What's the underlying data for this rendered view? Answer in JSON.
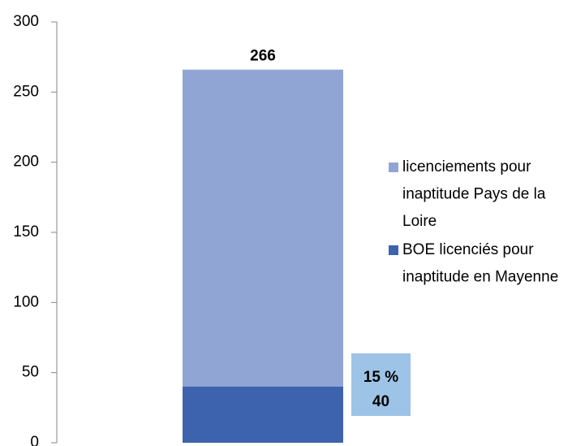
{
  "chart_data": {
    "type": "bar",
    "overlap": true,
    "categories": [
      null
    ],
    "series": [
      {
        "name": "licenciements pour inaptitude Pays de la Loire",
        "color": "#91a5d5",
        "values": [
          266
        ]
      },
      {
        "name": "BOE licenciés pour inaptitude en Mayenne",
        "color": "#3d63ae",
        "values": [
          40
        ]
      }
    ],
    "annotation": "15 %",
    "ylim": [
      0,
      300
    ],
    "yticks": [
      0,
      50,
      100,
      150,
      200,
      250,
      300
    ],
    "grid": false,
    "legend": "right"
  }
}
